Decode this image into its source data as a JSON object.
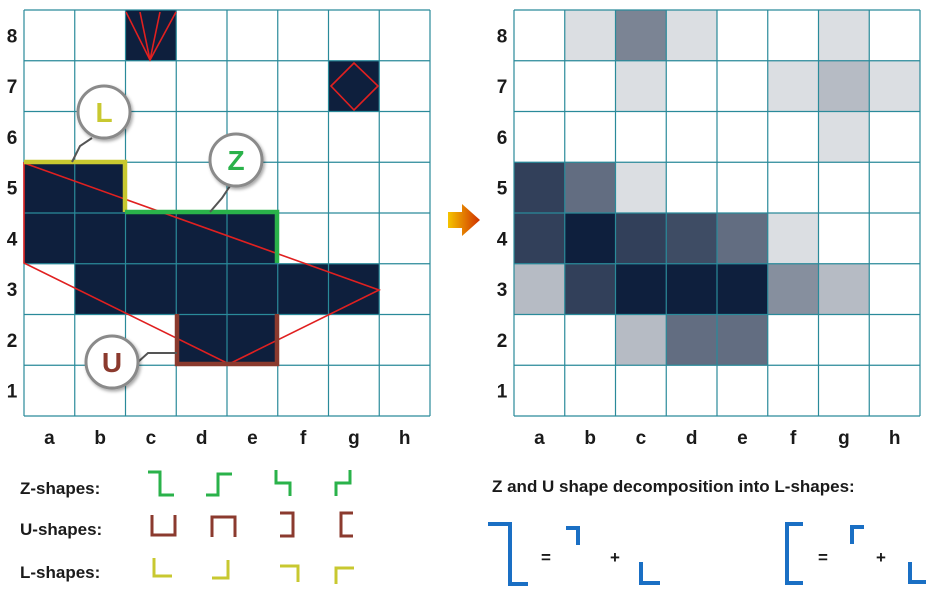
{
  "colors": {
    "grid_line": "#2a8a9a",
    "dark_cell": "#0e1f3d",
    "red_outline": "#e02020",
    "z_color": "#2ab24a",
    "u_color": "#8b3a2e",
    "l_color": "#c8c830",
    "blue_shape": "#1a6fc4",
    "arrow_start": "#f5c400",
    "arrow_end": "#d03000"
  },
  "grid": {
    "rows": [
      "8",
      "7",
      "6",
      "5",
      "4",
      "3",
      "2",
      "1"
    ],
    "cols": [
      "a",
      "b",
      "c",
      "d",
      "e",
      "f",
      "g",
      "h"
    ]
  },
  "left_grid": {
    "filled_cells": [
      {
        "col": "c",
        "row": 8
      },
      {
        "col": "g",
        "row": 7
      },
      {
        "col": "a",
        "row": 5
      },
      {
        "col": "b",
        "row": 5
      },
      {
        "col": "a",
        "row": 4
      },
      {
        "col": "b",
        "row": 4
      },
      {
        "col": "c",
        "row": 4
      },
      {
        "col": "d",
        "row": 4
      },
      {
        "col": "e",
        "row": 4
      },
      {
        "col": "b",
        "row": 3
      },
      {
        "col": "c",
        "row": 3
      },
      {
        "col": "d",
        "row": 3
      },
      {
        "col": "e",
        "row": 3
      },
      {
        "col": "f",
        "row": 3
      },
      {
        "col": "g",
        "row": 3
      },
      {
        "col": "d",
        "row": 2
      },
      {
        "col": "e",
        "row": 2
      }
    ],
    "callouts": {
      "l_label": "L",
      "z_label": "Z",
      "u_label": "U"
    }
  },
  "right_grid": {
    "shaded_cells": [
      {
        "col": "b",
        "row": 8,
        "level": 0.15
      },
      {
        "col": "c",
        "row": 8,
        "level": 0.55
      },
      {
        "col": "d",
        "row": 8,
        "level": 0.15
      },
      {
        "col": "g",
        "row": 8,
        "level": 0.15
      },
      {
        "col": "c",
        "row": 7,
        "level": 0.15
      },
      {
        "col": "f",
        "row": 7,
        "level": 0.15
      },
      {
        "col": "g",
        "row": 7,
        "level": 0.3
      },
      {
        "col": "h",
        "row": 7,
        "level": 0.15
      },
      {
        "col": "g",
        "row": 6,
        "level": 0.15
      },
      {
        "col": "a",
        "row": 5,
        "level": 0.85
      },
      {
        "col": "b",
        "row": 5,
        "level": 0.65
      },
      {
        "col": "c",
        "row": 5,
        "level": 0.15
      },
      {
        "col": "a",
        "row": 4,
        "level": 0.85
      },
      {
        "col": "b",
        "row": 4,
        "level": 1.0
      },
      {
        "col": "c",
        "row": 4,
        "level": 0.85
      },
      {
        "col": "d",
        "row": 4,
        "level": 0.8
      },
      {
        "col": "e",
        "row": 4,
        "level": 0.65
      },
      {
        "col": "f",
        "row": 4,
        "level": 0.15
      },
      {
        "col": "a",
        "row": 3,
        "level": 0.3
      },
      {
        "col": "b",
        "row": 3,
        "level": 0.85
      },
      {
        "col": "c",
        "row": 3,
        "level": 1.0
      },
      {
        "col": "d",
        "row": 3,
        "level": 1.0
      },
      {
        "col": "e",
        "row": 3,
        "level": 1.0
      },
      {
        "col": "f",
        "row": 3,
        "level": 0.5
      },
      {
        "col": "g",
        "row": 3,
        "level": 0.3
      },
      {
        "col": "c",
        "row": 2,
        "level": 0.3
      },
      {
        "col": "d",
        "row": 2,
        "level": 0.65
      },
      {
        "col": "e",
        "row": 2,
        "level": 0.65
      }
    ]
  },
  "legend": {
    "z_shapes_label": "Z-shapes:",
    "u_shapes_label": "U-shapes:",
    "l_shapes_label": "L-shapes:"
  },
  "decomposition": {
    "title": "Z and U shape decomposition  into L-shapes:",
    "equals": "=",
    "plus": "+"
  }
}
